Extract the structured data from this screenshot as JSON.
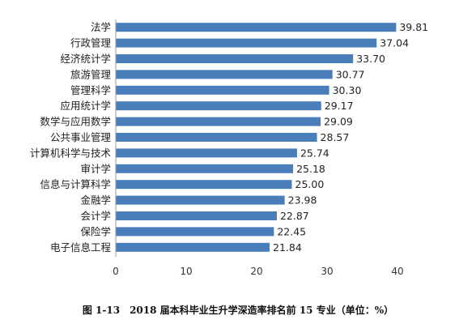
{
  "chart_data": {
    "type": "bar",
    "orientation": "horizontal",
    "categories": [
      "法学",
      "行政管理",
      "经济统计学",
      "旅游管理",
      "管理科学",
      "应用统计学",
      "数学与应用数学",
      "公共事业管理",
      "计算机科学与技术",
      "审计学",
      "信息与计算科学",
      "金融学",
      "会计学",
      "保险学",
      "电子信息工程"
    ],
    "values": [
      39.81,
      37.04,
      33.7,
      30.77,
      30.3,
      29.17,
      29.09,
      28.57,
      25.74,
      25.18,
      25.0,
      23.98,
      22.87,
      22.45,
      21.84
    ],
    "value_labels": [
      "39.81",
      "37.04",
      "33.70",
      "30.77",
      "30.30",
      "29.17",
      "29.09",
      "28.57",
      "25.74",
      "25.18",
      "25.00",
      "23.98",
      "22.87",
      "22.45",
      "21.84"
    ],
    "xlim": [
      0,
      40
    ],
    "xticks": [
      "0",
      "10",
      "20",
      "30",
      "40"
    ],
    "grid": false,
    "legend": "none",
    "bar_color": "#4a7ebb"
  },
  "caption": "图 1-13　2018 届本科毕业生升学深造率排名前 15 专业（单位：%）"
}
